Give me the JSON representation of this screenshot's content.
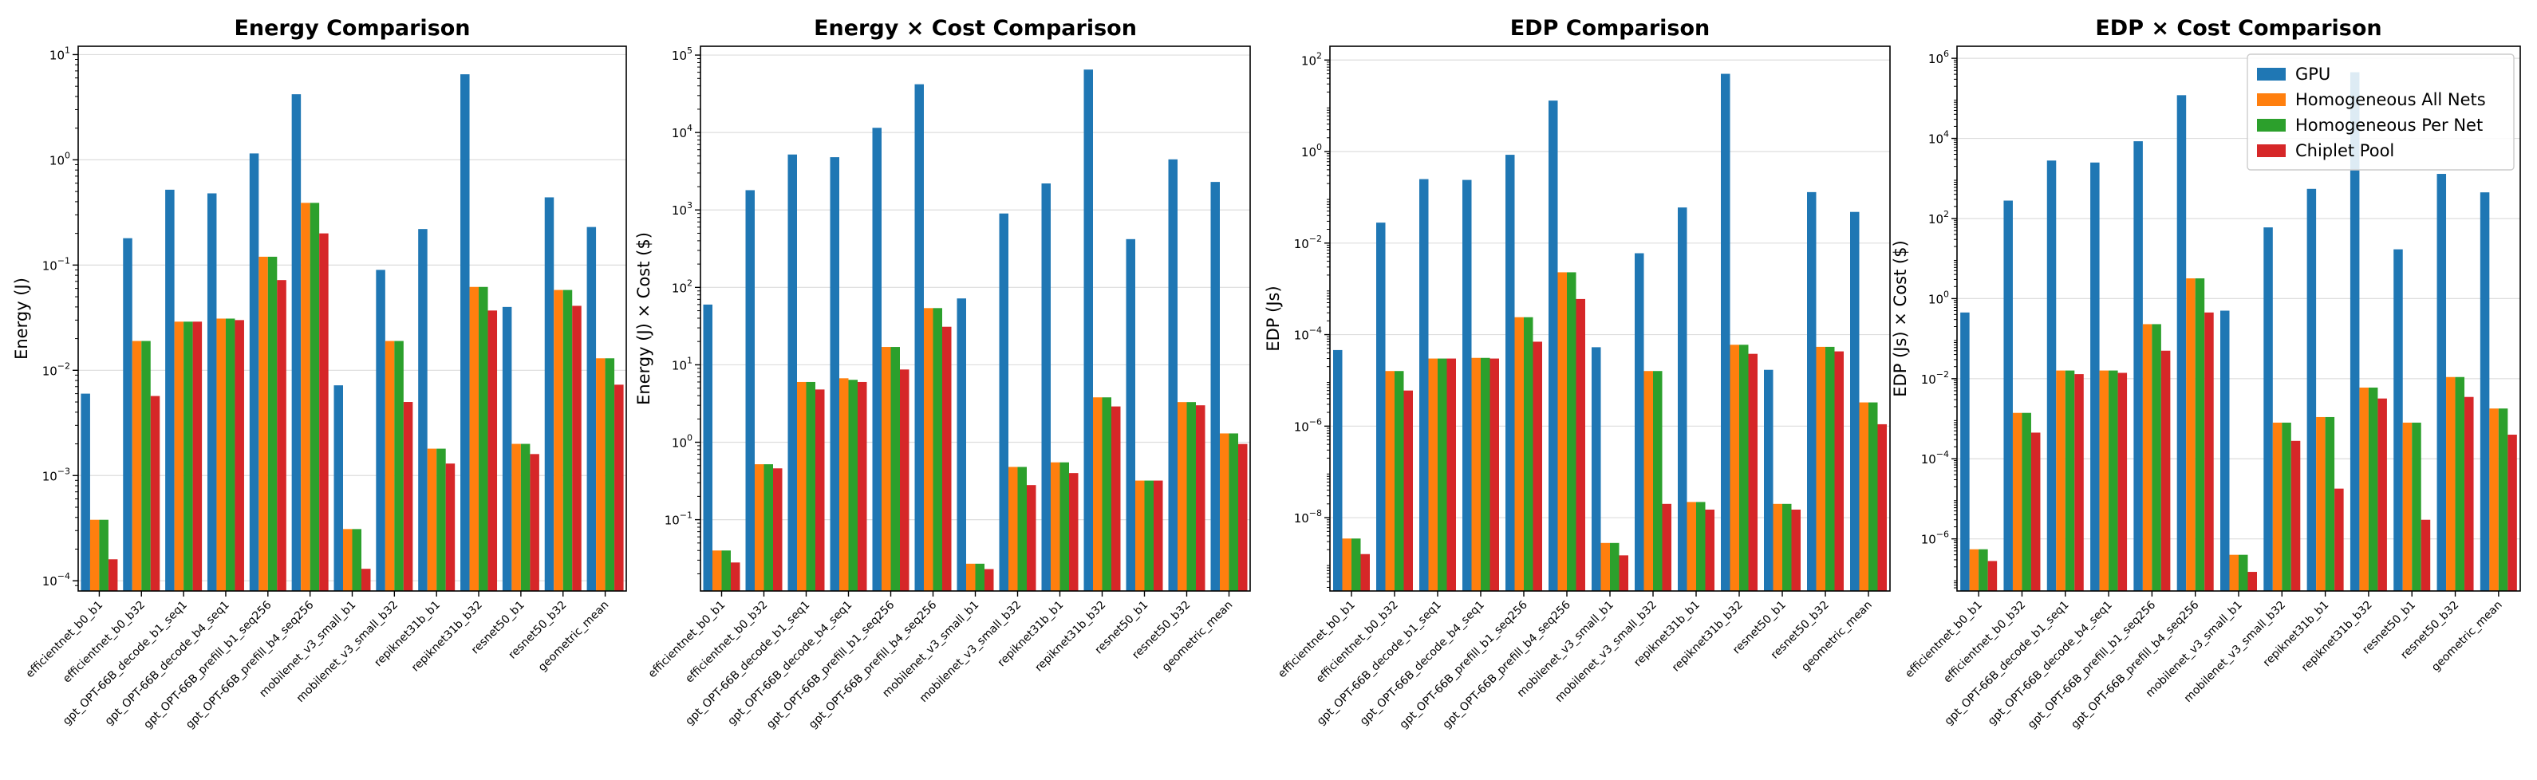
{
  "chart_data": [
    {
      "type": "bar",
      "title": "Energy Comparison",
      "ylabel": "Energy (J)",
      "xlabel": "",
      "yscale": "log",
      "ylim": [
        8e-05,
        12
      ],
      "grid": "y",
      "categories": [
        "efficientnet_b0_b1",
        "efficientnet_b0_b32",
        "gpt_OPT-66B_decode_b1_seq1",
        "gpt_OPT-66B_decode_b4_seq1",
        "gpt_OPT-66B_prefill_b1_seq256",
        "gpt_OPT-66B_prefill_b4_seq256",
        "mobilenet_v3_small_b1",
        "mobilenet_v3_small_b32",
        "repiknet31b_b1",
        "repiknet31b_b32",
        "resnet50_b1",
        "resnet50_b32",
        "geometric_mean"
      ],
      "series": [
        {
          "name": "GPU",
          "values": [
            0.006,
            0.18,
            0.52,
            0.48,
            1.15,
            4.2,
            0.0072,
            0.09,
            0.22,
            6.5,
            0.04,
            0.44,
            0.23
          ]
        },
        {
          "name": "Homogeneous All Nets",
          "values": [
            0.00038,
            0.019,
            0.029,
            0.031,
            0.12,
            0.39,
            0.00031,
            0.019,
            0.0018,
            0.062,
            0.002,
            0.058,
            0.013
          ]
        },
        {
          "name": "Homogeneous Per Net",
          "values": [
            0.00038,
            0.019,
            0.029,
            0.031,
            0.12,
            0.39,
            0.00031,
            0.019,
            0.0018,
            0.062,
            0.002,
            0.058,
            0.013
          ]
        },
        {
          "name": "Chiplet Pool",
          "values": [
            0.00016,
            0.0057,
            0.029,
            0.03,
            0.072,
            0.2,
            0.00013,
            0.005,
            0.0013,
            0.037,
            0.0016,
            0.041,
            0.0073
          ]
        }
      ],
      "yticks": [
        {
          "value": 0.0001,
          "base": "10",
          "exp": "−4"
        },
        {
          "value": 0.001,
          "base": "10",
          "exp": "−3"
        },
        {
          "value": 0.01,
          "base": "10",
          "exp": "−2"
        },
        {
          "value": 0.1,
          "base": "10",
          "exp": "−1"
        },
        {
          "value": 1,
          "base": "10",
          "exp": "0"
        },
        {
          "value": 10,
          "base": "10",
          "exp": "1"
        }
      ]
    },
    {
      "type": "bar",
      "title": "Energy × Cost Comparison",
      "ylabel": "Energy (J) × Cost ($)",
      "xlabel": "",
      "yscale": "log",
      "ylim": [
        0.012,
        130000
      ],
      "grid": "y",
      "categories": [
        "efficientnet_b0_b1",
        "efficientnet_b0_b32",
        "gpt_OPT-66B_decode_b1_seq1",
        "gpt_OPT-66B_decode_b4_seq1",
        "gpt_OPT-66B_prefill_b1_seq256",
        "gpt_OPT-66B_prefill_b4_seq256",
        "mobilenet_v3_small_b1",
        "mobilenet_v3_small_b32",
        "repiknet31b_b1",
        "repiknet31b_b32",
        "resnet50_b1",
        "resnet50_b32",
        "geometric_mean"
      ],
      "series": [
        {
          "name": "GPU",
          "values": [
            60,
            1800,
            5200,
            4800,
            11500,
            42000,
            72,
            900,
            2200,
            65000,
            420,
            4500,
            2300
          ]
        },
        {
          "name": "Homogeneous All Nets",
          "values": [
            0.04,
            0.52,
            6.0,
            6.7,
            17,
            54,
            0.027,
            0.48,
            0.55,
            3.8,
            0.32,
            3.3,
            1.3
          ]
        },
        {
          "name": "Homogeneous Per Net",
          "values": [
            0.04,
            0.52,
            6.0,
            6.4,
            17,
            54,
            0.027,
            0.48,
            0.55,
            3.8,
            0.32,
            3.3,
            1.3
          ]
        },
        {
          "name": "Chiplet Pool",
          "values": [
            0.028,
            0.46,
            4.8,
            6.0,
            8.7,
            31,
            0.023,
            0.28,
            0.4,
            2.9,
            0.32,
            3.0,
            0.95
          ]
        }
      ],
      "yticks": [
        {
          "value": 0.1,
          "base": "10",
          "exp": "−1"
        },
        {
          "value": 1,
          "base": "10",
          "exp": "0"
        },
        {
          "value": 10,
          "base": "10",
          "exp": "1"
        },
        {
          "value": 100,
          "base": "10",
          "exp": "2"
        },
        {
          "value": 1000,
          "base": "10",
          "exp": "3"
        },
        {
          "value": 10000,
          "base": "10",
          "exp": "4"
        },
        {
          "value": 100000,
          "base": "10",
          "exp": "5"
        }
      ]
    },
    {
      "type": "bar",
      "title": "EDP Comparison",
      "ylabel": "EDP (Js)",
      "xlabel": "",
      "yscale": "log",
      "ylim": [
        2.5e-10,
        200
      ],
      "grid": "y",
      "categories": [
        "efficientnet_b0_b1",
        "efficientnet_b0_b32",
        "gpt_OPT-66B_decode_b1_seq1",
        "gpt_OPT-66B_decode_b4_seq1",
        "gpt_OPT-66B_prefill_b1_seq256",
        "gpt_OPT-66B_prefill_b4_seq256",
        "mobilenet_v3_small_b1",
        "mobilenet_v3_small_b32",
        "repiknet31b_b1",
        "repiknet31b_b32",
        "resnet50_b1",
        "resnet50_b32",
        "geometric_mean"
      ],
      "series": [
        {
          "name": "GPU",
          "values": [
            4.6e-05,
            0.028,
            0.25,
            0.24,
            0.85,
            13,
            5.3e-05,
            0.006,
            0.06,
            50,
            1.7e-05,
            0.13,
            0.048
          ]
        },
        {
          "name": "Homogeneous All Nets",
          "values": [
            3.5e-09,
            1.6e-05,
            3e-05,
            3.1e-05,
            0.00024,
            0.0023,
            2.8e-09,
            1.6e-05,
            2.2e-08,
            6e-05,
            2e-08,
            5.4e-05,
            3.3e-06
          ]
        },
        {
          "name": "Homogeneous Per Net",
          "values": [
            3.5e-09,
            1.6e-05,
            3e-05,
            3.1e-05,
            0.00024,
            0.0023,
            2.8e-09,
            1.6e-05,
            2.2e-08,
            6e-05,
            2e-08,
            5.4e-05,
            3.3e-06
          ]
        },
        {
          "name": "Chiplet Pool",
          "values": [
            1.6e-09,
            6e-06,
            3e-05,
            3e-05,
            7e-05,
            0.0006,
            1.5e-09,
            2e-08,
            1.5e-08,
            3.8e-05,
            1.5e-08,
            4.3e-05,
            1.1e-06
          ]
        }
      ],
      "yticks": [
        {
          "value": 1e-08,
          "base": "10",
          "exp": "−8"
        },
        {
          "value": 1e-06,
          "base": "10",
          "exp": "−6"
        },
        {
          "value": 0.0001,
          "base": "10",
          "exp": "−4"
        },
        {
          "value": 0.01,
          "base": "10",
          "exp": "−2"
        },
        {
          "value": 1,
          "base": "10",
          "exp": "0"
        },
        {
          "value": 100,
          "base": "10",
          "exp": "2"
        }
      ]
    },
    {
      "type": "bar",
      "title": "EDP × Cost Comparison",
      "ylabel": "EDP (Js) × Cost ($)",
      "xlabel": "",
      "yscale": "log",
      "ylim": [
        5e-08,
        2000000
      ],
      "grid": "y",
      "legend": "top-right",
      "categories": [
        "efficientnet_b0_b1",
        "efficientnet_b0_b32",
        "gpt_OPT-66B_decode_b1_seq1",
        "gpt_OPT-66B_decode_b4_seq1",
        "gpt_OPT-66B_prefill_b1_seq256",
        "gpt_OPT-66B_prefill_b4_seq256",
        "mobilenet_v3_small_b1",
        "mobilenet_v3_small_b32",
        "repiknet31b_b1",
        "repiknet31b_b32",
        "resnet50_b1",
        "resnet50_b32",
        "geometric_mean"
      ],
      "series": [
        {
          "name": "GPU",
          "values": [
            0.45,
            280,
            2800,
            2500,
            8500,
            120000,
            0.5,
            60,
            550,
            450000,
            17,
            1300,
            450
          ]
        },
        {
          "name": "Homogeneous All Nets",
          "values": [
            5.5e-07,
            0.0014,
            0.016,
            0.016,
            0.23,
            3.2,
            4e-07,
            0.0008,
            0.0011,
            0.006,
            0.0008,
            0.011,
            0.0018
          ]
        },
        {
          "name": "Homogeneous Per Net",
          "values": [
            5.5e-07,
            0.0014,
            0.016,
            0.016,
            0.23,
            3.2,
            4e-07,
            0.0008,
            0.0011,
            0.006,
            0.0008,
            0.011,
            0.0018
          ]
        },
        {
          "name": "Chiplet Pool",
          "values": [
            2.8e-07,
            0.00045,
            0.013,
            0.014,
            0.05,
            0.45,
            1.5e-07,
            0.00028,
            1.8e-05,
            0.0032,
            3e-06,
            0.0035,
            0.0004
          ]
        }
      ],
      "yticks": [
        {
          "value": 1e-06,
          "base": "10",
          "exp": "−6"
        },
        {
          "value": 0.0001,
          "base": "10",
          "exp": "−4"
        },
        {
          "value": 0.01,
          "base": "10",
          "exp": "−2"
        },
        {
          "value": 1,
          "base": "10",
          "exp": "0"
        },
        {
          "value": 100,
          "base": "10",
          "exp": "2"
        },
        {
          "value": 10000,
          "base": "10",
          "exp": "4"
        },
        {
          "value": 1000000,
          "base": "10",
          "exp": "6"
        }
      ]
    }
  ],
  "legend": {
    "placement": "top-right",
    "entries": [
      {
        "name": "GPU",
        "color": "#1f77b4"
      },
      {
        "name": "Homogeneous All Nets",
        "color": "#ff7f0e"
      },
      {
        "name": "Homogeneous Per Net",
        "color": "#2ca02c"
      },
      {
        "name": "Chiplet Pool",
        "color": "#d62728"
      }
    ]
  },
  "colors": [
    "#1f77b4",
    "#ff7f0e",
    "#2ca02c",
    "#d62728"
  ]
}
